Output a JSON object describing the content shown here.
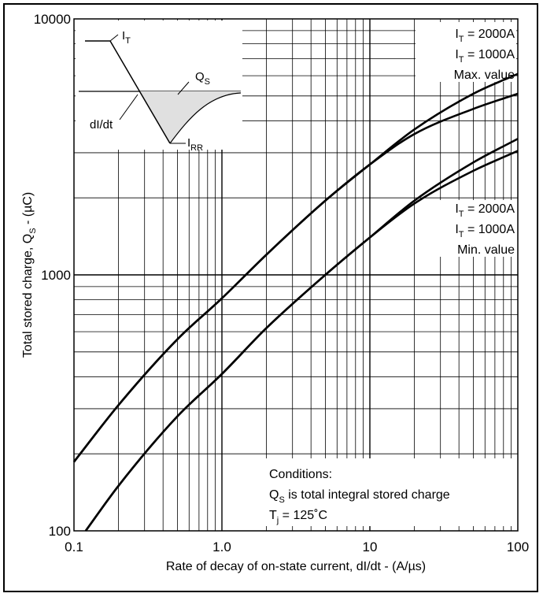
{
  "chart_data": {
    "type": "line",
    "xlabel": "Rate of decay of on-state current, dI/dt - (A/µs)",
    "ylabel_main": "Total stored charge, Q",
    "ylabel_sub": "S",
    "ylabel_tail": " - (µC)",
    "x_scale": "log",
    "y_scale": "log",
    "xlim": [
      0.1,
      100
    ],
    "ylim": [
      100,
      10000
    ],
    "x_ticks": [
      "0.1",
      "1.0",
      "10",
      "100"
    ],
    "y_ticks": [
      "100",
      "1000",
      "10000"
    ],
    "grid": true,
    "series": [
      {
        "x": [
          0.1,
          0.2,
          0.5,
          1,
          2,
          5,
          10,
          20,
          50,
          100
        ],
        "y": [
          186,
          310,
          560,
          810,
          1200,
          1950,
          2700,
          3700,
          5100,
          6100
        ]
      },
      {
        "x": [
          0.1,
          0.2,
          0.5,
          1,
          2,
          5,
          10,
          20,
          50,
          100
        ],
        "y": [
          186,
          310,
          560,
          810,
          1200,
          1950,
          2700,
          3550,
          4450,
          5100
        ]
      },
      {
        "x": [
          0.12,
          0.2,
          0.5,
          1,
          2,
          5,
          10,
          20,
          50,
          100
        ],
        "y": [
          100,
          150,
          280,
          410,
          620,
          1000,
          1400,
          1950,
          2750,
          3400
        ]
      },
      {
        "x": [
          0.12,
          0.2,
          0.5,
          1,
          2,
          5,
          10,
          20,
          50,
          100
        ],
        "y": [
          100,
          150,
          280,
          410,
          620,
          1000,
          1400,
          1900,
          2550,
          3050
        ]
      }
    ],
    "labels": {
      "max_group": {
        "line1": {
          "main": "I",
          "sub": "T",
          "tail": " = 2000A"
        },
        "line2": {
          "main": "I",
          "sub": "T",
          "tail": " = 1000A"
        },
        "line3": "Max. value"
      },
      "min_group": {
        "line1": {
          "main": "I",
          "sub": "T",
          "tail": " = 2000A"
        },
        "line2": {
          "main": "I",
          "sub": "T",
          "tail": " = 1000A"
        },
        "line3": "Min. value"
      },
      "conditions": {
        "title": "Conditions:",
        "line1": {
          "main": "Q",
          "sub": "S",
          "tail": " is total integral stored charge"
        },
        "line2": {
          "main": "T",
          "sub": "j",
          "tail": " = 125˚C"
        }
      }
    },
    "inset": {
      "it": {
        "main": "I",
        "sub": "T"
      },
      "qs": {
        "main": "Q",
        "sub": "S"
      },
      "didt": "dI/dt",
      "irr": {
        "main": "I",
        "sub": "RR"
      }
    }
  }
}
